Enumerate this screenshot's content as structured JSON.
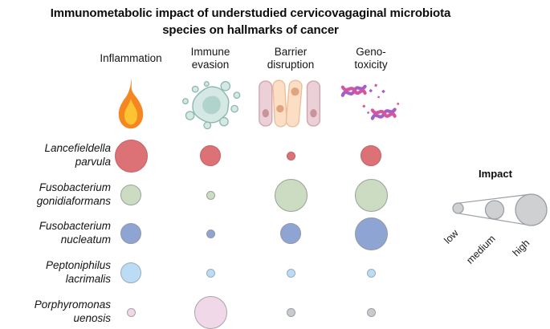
{
  "title": "Immunometabolic impact of understudied cervicovagaginal microbiota species on hallmarks of cancer",
  "columns": [
    {
      "id": "inflammation",
      "label": "Inflammation",
      "label_lines": [
        "Inflammation"
      ],
      "icon": "flame-icon"
    },
    {
      "id": "immune-evasion",
      "label": "Immune evasion",
      "label_lines": [
        "Immune",
        "evasion"
      ],
      "icon": "cancer-cell-icon"
    },
    {
      "id": "barrier-disruption",
      "label": "Barrier disruption",
      "label_lines": [
        "Barrier",
        "disruption"
      ],
      "icon": "epithelial-barrier-icon"
    },
    {
      "id": "genotoxicity",
      "label": "Geno-toxicity",
      "label_lines": [
        "Geno-",
        "toxicity"
      ],
      "icon": "damaged-dna-icon"
    }
  ],
  "rows": [
    {
      "id": "lancefieldella-parvula",
      "species": "Lancefieldella parvula",
      "species_lines": [
        "Lancefieldella",
        "parvula"
      ],
      "bubble_fill": "#dc7275",
      "bubble_border": "#c56164",
      "cells": [
        {
          "impact": "high"
        },
        {
          "impact": "medium"
        },
        {
          "impact": "low"
        },
        {
          "impact": "medium"
        }
      ]
    },
    {
      "id": "fusobacterium-gonidiaformans",
      "species": "Fusobacterium gonidiaformans",
      "species_lines": [
        "Fusobacterium",
        "gonidiaformans"
      ],
      "bubble_fill": "#cbdcc2",
      "bubble_border": "#99a396",
      "cells": [
        {
          "impact": "medium"
        },
        {
          "impact": "low"
        },
        {
          "impact": "high"
        },
        {
          "impact": "high"
        }
      ]
    },
    {
      "id": "fusobacterium-nucleatum",
      "species": "Fusobacterium nucleatum",
      "species_lines": [
        "Fusobacterium",
        "nucleatum"
      ],
      "bubble_fill": "#8ea4d2",
      "bubble_border": "#9298a5",
      "cells": [
        {
          "impact": "medium"
        },
        {
          "impact": "low"
        },
        {
          "impact": "medium"
        },
        {
          "impact": "high"
        }
      ]
    },
    {
      "id": "peptoniphilus-lacrimalis",
      "species": "Peptoniphilus lacrimalis",
      "species_lines": [
        "Peptoniphilus",
        "lacrimalis"
      ],
      "bubble_fill": "#bcdcf5",
      "bubble_border": "#97adbe",
      "cells": [
        {
          "impact": "medium"
        },
        {
          "impact": "low"
        },
        {
          "impact": "low"
        },
        {
          "impact": "low"
        }
      ]
    },
    {
      "id": "porphyromonas-uenosis",
      "species": "Porphyromonas uenosis",
      "species_lines": [
        "Porphyromonas",
        "uenosis"
      ],
      "bubble_fill": "#f0d8e9",
      "bubble_border": "#aaa2aa",
      "cells": [
        {
          "impact": "low"
        },
        {
          "impact": "high"
        },
        {
          "impact": "low",
          "fill": "#c8cacd",
          "border": "#9aa0a6"
        },
        {
          "impact": "low",
          "fill": "#c8cacd",
          "border": "#9aa0a6"
        }
      ]
    }
  ],
  "legend": {
    "title": "Impact",
    "items": [
      {
        "label": "low",
        "impact": "low"
      },
      {
        "label": "medium",
        "impact": "medium"
      },
      {
        "label": "high",
        "impact": "high"
      }
    ]
  },
  "chart_data": {
    "type": "heatmap",
    "subtype": "bubble-matrix",
    "title": "Immunometabolic impact of understudied cervicovagaginal microbiota species on hallmarks of cancer",
    "x_categories": [
      "Inflammation",
      "Immune evasion",
      "Barrier disruption",
      "Geno-toxicity"
    ],
    "y_categories": [
      "Lancefieldella parvula",
      "Fusobacterium gonidiaformans",
      "Fusobacterium nucleatum",
      "Peptoniphilus lacrimalis",
      "Porphyromonas uenosis"
    ],
    "encoding": "bubble diameter encodes impact level (low / medium / high)",
    "values": [
      [
        "high",
        "medium",
        "low",
        "medium"
      ],
      [
        "medium",
        "low",
        "high",
        "high"
      ],
      [
        "medium",
        "low",
        "medium",
        "high"
      ],
      [
        "medium",
        "low",
        "low",
        "low"
      ],
      [
        "low",
        "high",
        "low",
        "low"
      ]
    ],
    "row_colors": [
      "#dc7275",
      "#cbdcc2",
      "#8ea4d2",
      "#bcdcf5",
      "#f0d8e9"
    ],
    "cell_color_overrides": [
      {
        "row": "Porphyromonas uenosis",
        "col": "Barrier disruption",
        "color": "#c8cacd"
      },
      {
        "row": "Porphyromonas uenosis",
        "col": "Geno-toxicity",
        "color": "#c8cacd"
      }
    ],
    "legend": {
      "title": "Impact",
      "levels": [
        "low",
        "medium",
        "high"
      ],
      "position": "right",
      "swatch_color": "#ced0d2"
    },
    "grid": false
  }
}
